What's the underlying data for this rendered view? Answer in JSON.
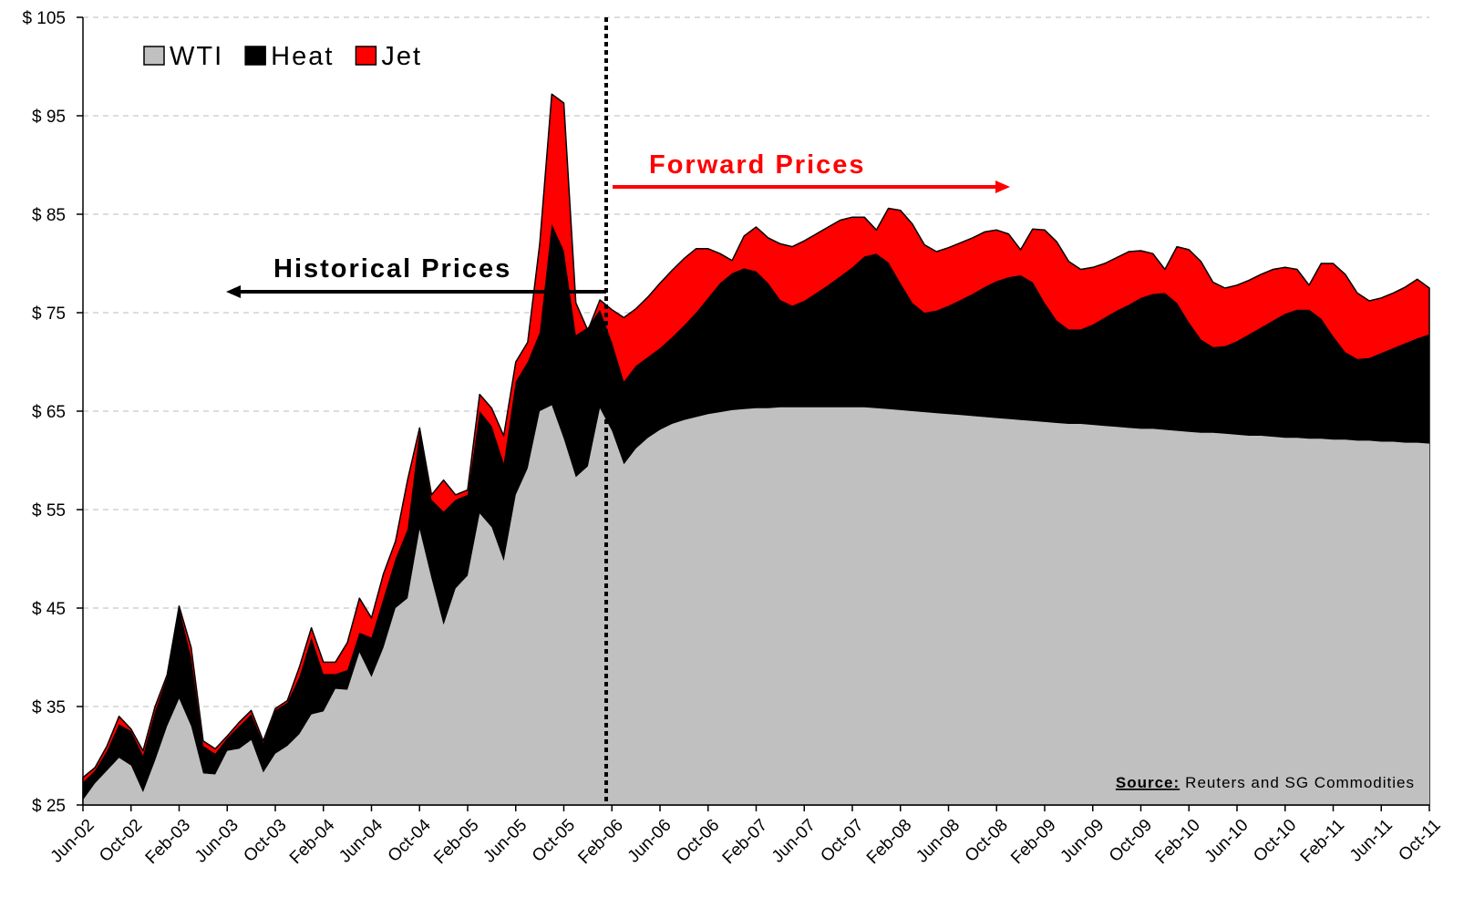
{
  "chart_data": {
    "type": "area",
    "categories": [
      "Jun-02",
      null,
      null,
      null,
      "Oct-02",
      null,
      null,
      null,
      "Feb-03",
      null,
      null,
      null,
      "Jun-03",
      null,
      null,
      null,
      "Oct-03",
      null,
      null,
      null,
      "Feb-04",
      null,
      null,
      null,
      "Jun-04",
      null,
      null,
      null,
      "Oct-04",
      null,
      null,
      null,
      "Feb-05",
      null,
      null,
      null,
      "Jun-05",
      null,
      null,
      null,
      "Oct-05",
      null,
      null,
      null,
      "Feb-06",
      null,
      null,
      null,
      "Jun-06",
      null,
      null,
      null,
      "Oct-06",
      null,
      null,
      null,
      "Feb-07",
      null,
      null,
      null,
      "Jun-07",
      null,
      null,
      null,
      "Oct-07",
      null,
      null,
      null,
      "Feb-08",
      null,
      null,
      null,
      "Jun-08",
      null,
      null,
      null,
      "Oct-08",
      null,
      null,
      null,
      "Feb-09",
      null,
      null,
      null,
      "Jun-09",
      null,
      null,
      null,
      "Oct-09",
      null,
      null,
      null,
      "Feb-10",
      null,
      null,
      null,
      "Jun-10",
      null,
      null,
      null,
      "Oct-10",
      null,
      null,
      null,
      "Feb-11",
      null,
      null,
      null,
      "Jun-11",
      null,
      null,
      null,
      "Oct-11"
    ],
    "series": [
      {
        "name": "WTI",
        "color": "#c0c0c0",
        "values": [
          25.5,
          27.2,
          28.5,
          29.8,
          29,
          26.3,
          29.5,
          33,
          35.8,
          33,
          28.2,
          28.1,
          30.5,
          30.7,
          31.6,
          28.3,
          30.2,
          31,
          32.2,
          34.2,
          34.5,
          36.8,
          36.7,
          40.5,
          38,
          41,
          45,
          46,
          53,
          48,
          43.3,
          47,
          48.3,
          54.6,
          53.2,
          49.8,
          56.5,
          59.2,
          65,
          65.6,
          62.2,
          58.3,
          59.4,
          65.3,
          63,
          59.6,
          61.2,
          62.3,
          63.1,
          63.7,
          64.1,
          64.4,
          64.7,
          64.9,
          65.1,
          65.2,
          65.3,
          65.3,
          65.4,
          65.4,
          65.4,
          65.4,
          65.4,
          65.4,
          65.4,
          65.4,
          65.3,
          65.2,
          65.1,
          65,
          64.9,
          64.8,
          64.7,
          64.6,
          64.5,
          64.4,
          64.3,
          64.2,
          64.1,
          64,
          63.9,
          63.8,
          63.7,
          63.7,
          63.6,
          63.5,
          63.4,
          63.3,
          63.2,
          63.2,
          63.1,
          63,
          62.9,
          62.8,
          62.8,
          62.7,
          62.6,
          62.5,
          62.5,
          62.4,
          62.3,
          62.3,
          62.2,
          62.2,
          62.1,
          62.1,
          62,
          62,
          61.9,
          61.9,
          61.8,
          61.8,
          61.7
        ]
      },
      {
        "name": "Heat",
        "color": "#000000",
        "values": [
          27.3,
          28.5,
          30.5,
          33.2,
          32.5,
          30,
          34.5,
          38,
          45,
          40,
          31,
          30.2,
          31.8,
          33,
          34.2,
          31.3,
          34.6,
          35.4,
          38,
          42,
          38.3,
          38.3,
          38.7,
          42.5,
          42,
          46,
          50,
          53,
          63,
          56,
          54.8,
          56,
          56.5,
          65,
          63.5,
          59.7,
          68,
          70,
          73,
          84,
          81.3,
          72.7,
          73.5,
          75.3,
          72,
          68,
          69.6,
          70.5,
          71.4,
          72.5,
          73.7,
          75,
          76.5,
          78,
          79,
          79.5,
          79.2,
          78,
          76.3,
          75.7,
          76.2,
          77,
          77.8,
          78.7,
          79.6,
          80.7,
          81,
          80.1,
          78,
          76,
          75,
          75.2,
          75.7,
          76.3,
          76.9,
          77.6,
          78.2,
          78.6,
          78.8,
          78.1,
          76,
          74.2,
          73.3,
          73.3,
          73.8,
          74.5,
          75.2,
          75.8,
          76.5,
          76.9,
          77,
          76,
          74,
          72.3,
          71.5,
          71.6,
          72.1,
          72.8,
          73.5,
          74.2,
          74.9,
          75.3,
          75.3,
          74.4,
          72.6,
          71,
          70.3,
          70.4,
          70.9,
          71.4,
          71.9,
          72.4,
          72.8
        ]
      },
      {
        "name": "Jet",
        "color": "#ff0000",
        "values": [
          27.8,
          28.8,
          31,
          34,
          32.7,
          30.5,
          35,
          38.2,
          45.2,
          41,
          31.5,
          30.7,
          32,
          33.4,
          34.6,
          31.5,
          34.8,
          35.6,
          39,
          43,
          39.5,
          39.5,
          41.5,
          46,
          44,
          48.5,
          51.8,
          58,
          63.3,
          56.5,
          58,
          56.5,
          57,
          66.7,
          65.3,
          62.5,
          70,
          72,
          82,
          97.2,
          96.3,
          76,
          73.2,
          76.3,
          75.3,
          74.5,
          75.4,
          76.6,
          78,
          79.3,
          80.5,
          81.5,
          81.5,
          81,
          80.3,
          82.8,
          83.7,
          82.6,
          82,
          81.7,
          82.3,
          83,
          83.7,
          84.4,
          84.7,
          84.7,
          83.4,
          85.6,
          85.4,
          84,
          81.9,
          81.2,
          81.6,
          82.1,
          82.6,
          83.2,
          83.4,
          83,
          81.4,
          83.5,
          83.4,
          82.2,
          80.2,
          79.4,
          79.6,
          80,
          80.6,
          81.2,
          81.3,
          81,
          79.4,
          81.7,
          81.4,
          80.2,
          78.1,
          77.5,
          77.8,
          78.3,
          78.9,
          79.4,
          79.6,
          79.4,
          77.8,
          80,
          80,
          78.9,
          77,
          76.2,
          76.5,
          77,
          77.6,
          78.4,
          77.5
        ]
      }
    ],
    "ylim": [
      25,
      105
    ],
    "yticks": [
      {
        "value": 25,
        "label": "$ 25"
      },
      {
        "value": 35,
        "label": "$ 35"
      },
      {
        "value": 45,
        "label": "$ 45"
      },
      {
        "value": 55,
        "label": "$ 55"
      },
      {
        "value": 65,
        "label": "$ 65"
      },
      {
        "value": 75,
        "label": "$ 75"
      },
      {
        "value": 85,
        "label": "$ 85"
      },
      {
        "value": 95,
        "label": "$ 95"
      },
      {
        "value": 105,
        "label": "$ 105"
      }
    ],
    "grid": true,
    "legend": "top-left",
    "annotations": {
      "historical": "Historical Prices",
      "forward": "Forward Prices",
      "source_label": "Source:",
      "source_text": "Reuters and SG Commodities"
    }
  }
}
